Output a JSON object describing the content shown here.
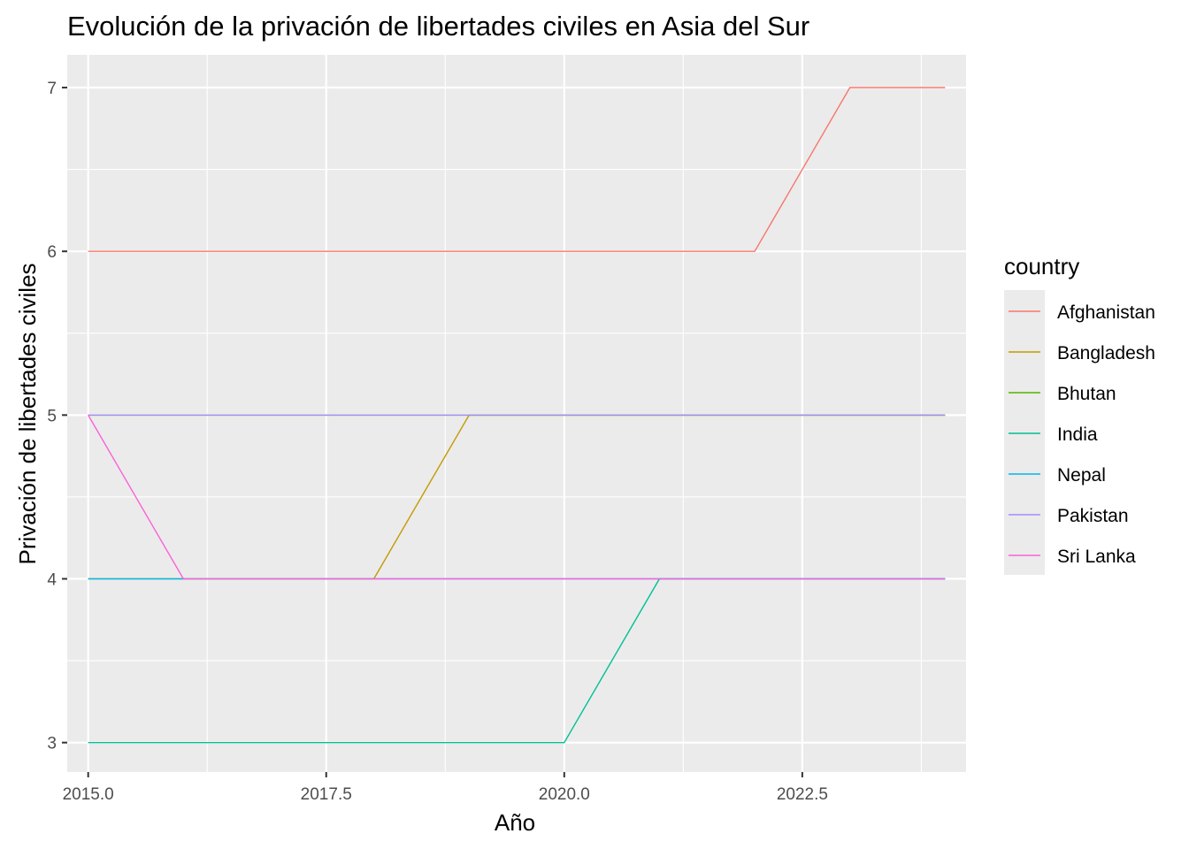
{
  "chart_data": {
    "type": "line",
    "title": "Evolución de la privación de libertades civiles en Asia del Sur",
    "xlabel": "Año",
    "ylabel": "Privación de libertades civiles",
    "xlim": [
      2014.78,
      2024.22
    ],
    "ylim": [
      2.82,
      7.2
    ],
    "x_ticks": [
      2015.0,
      2017.5,
      2020.0,
      2022.5
    ],
    "x_tick_labels": [
      "2015.0",
      "2017.5",
      "2020.0",
      "2022.5"
    ],
    "y_ticks": [
      3,
      4,
      5,
      6,
      7
    ],
    "y_tick_labels": [
      "3",
      "4",
      "5",
      "6",
      "7"
    ],
    "grid": true,
    "legend_title": "country",
    "legend_position": "right",
    "x": [
      2015,
      2016,
      2017,
      2018,
      2019,
      2020,
      2021,
      2022,
      2023,
      2024
    ],
    "series": [
      {
        "name": "Afghanistan",
        "color": "#F8766D",
        "values": [
          6,
          6,
          6,
          6,
          6,
          6,
          6,
          6,
          7,
          7
        ]
      },
      {
        "name": "Bangladesh",
        "color": "#C49A00",
        "values": [
          4,
          4,
          4,
          4,
          5,
          5,
          5,
          5,
          5,
          5
        ]
      },
      {
        "name": "Bhutan",
        "color": "#53B400",
        "values": [
          5,
          5,
          5,
          5,
          5,
          5,
          5,
          5,
          5,
          5
        ]
      },
      {
        "name": "India",
        "color": "#00C094",
        "values": [
          3,
          3,
          3,
          3,
          3,
          3,
          4,
          4,
          4,
          4
        ]
      },
      {
        "name": "Nepal",
        "color": "#00B6EB",
        "values": [
          4,
          4,
          4,
          4,
          4,
          4,
          4,
          4,
          4,
          4
        ]
      },
      {
        "name": "Pakistan",
        "color": "#A58AFF",
        "values": [
          5,
          5,
          5,
          5,
          5,
          5,
          5,
          5,
          5,
          5
        ]
      },
      {
        "name": "Sri Lanka",
        "color": "#FB61D7",
        "values": [
          5,
          4,
          4,
          4,
          4,
          4,
          4,
          4,
          4,
          4
        ]
      }
    ]
  }
}
